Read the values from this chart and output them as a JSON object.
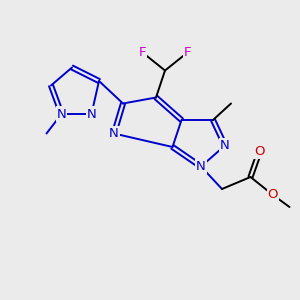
{
  "bg_color": "#ebebeb",
  "atom_colors": {
    "N": "#0000cc",
    "O": "#cc0000",
    "F": "#cc00cc",
    "C": "#000000"
  },
  "lw": 1.4,
  "fs": 9.5
}
